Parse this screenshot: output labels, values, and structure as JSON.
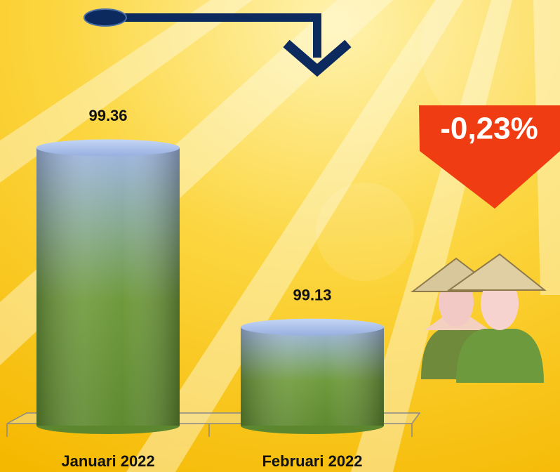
{
  "chart_data": {
    "type": "bar",
    "categories": [
      "Januari 2022",
      "Februari 2022"
    ],
    "values": [
      99.36,
      99.13
    ],
    "ylim": [
      99,
      99.4
    ],
    "annotation": "-0,23%"
  }
}
